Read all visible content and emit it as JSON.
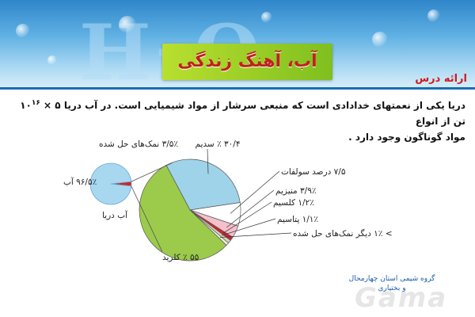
{
  "header": {
    "title": "آب، آهنگ زندگی",
    "section_label": "ارائه درس"
  },
  "body": {
    "line1_a": "دریا یکی از نعمتهای خدادادی است که منبعی سرشار از مواد شیمیایی است. در آب دریا",
    "quantity": "۵ × ۱۰",
    "exponent": "۱۶",
    "line1_b": "تن از انواع",
    "line2": "مواد گوناگون وجود دارد ."
  },
  "footer": {
    "org": "گروه شیمی استان چهارمحال و بختیاری",
    "logo_text": "Gama"
  },
  "colors": {
    "water": "#a8d8f0",
    "sodium": "#9fd3ea",
    "chloride": "#9ccb4b",
    "sulfate": "#ffffff",
    "magnesium": "#f3c0cc",
    "calcium": "#d2232a",
    "potassium": "#d8d0b8",
    "other": "#f4f0e0",
    "title_red": "#c22020"
  },
  "chart_data": [
    {
      "type": "pie",
      "title": "آب دریا",
      "slices": [
        {
          "label": "آب",
          "display": "۹۶/۵٪ آب",
          "value": 96.5
        },
        {
          "label": "نمک‌های حل شده",
          "display": "۳/۵٪ نمک‌های حل شده",
          "value": 3.5
        }
      ]
    },
    {
      "type": "pie",
      "slices": [
        {
          "label": "سدیم",
          "display": "۳۰/۴ ٪ سدیم",
          "value": 30.4
        },
        {
          "label": "درصد سولفات",
          "display": "۷/۵ درصد سولفات",
          "value": 7.5
        },
        {
          "label": "منیزیم",
          "display": "۳/۹٪ منیزیم",
          "value": 3.9
        },
        {
          "label": "کلسیم",
          "display": "۱/۲٪ کلسیم",
          "value": 1.2
        },
        {
          "label": "پتاسیم",
          "display": "۱/۱٪ پتاسیم",
          "value": 1.1
        },
        {
          "label": "دیگر نمک‌های حل شده",
          "display": "> ۱٪ دیگر نمک‌های حل شده",
          "value": 0.9
        },
        {
          "label": "کلرید",
          "display": "۵۵ ٪ کلرید",
          "value": 55
        }
      ]
    }
  ]
}
